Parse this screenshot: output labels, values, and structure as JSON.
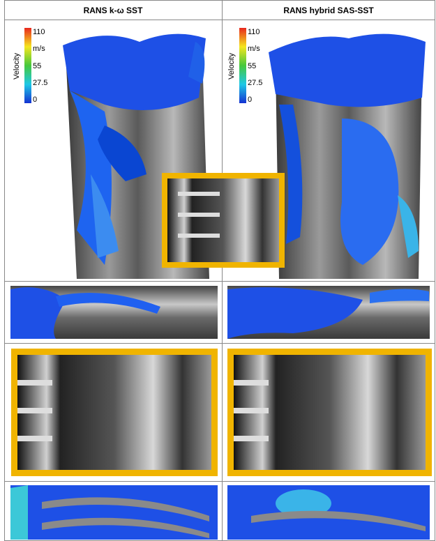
{
  "header": {
    "columns": [
      "RANS k-ω SST",
      "RANS hybrid SAS-SST"
    ]
  },
  "legends": [
    {
      "title": "Velocity",
      "unit": "m/s",
      "ticks": [
        "110",
        "55",
        "27.5",
        "0"
      ]
    },
    {
      "title": "Velocity",
      "unit": "m/s",
      "ticks": [
        "110",
        "55",
        "27.5",
        "0"
      ]
    }
  ]
}
